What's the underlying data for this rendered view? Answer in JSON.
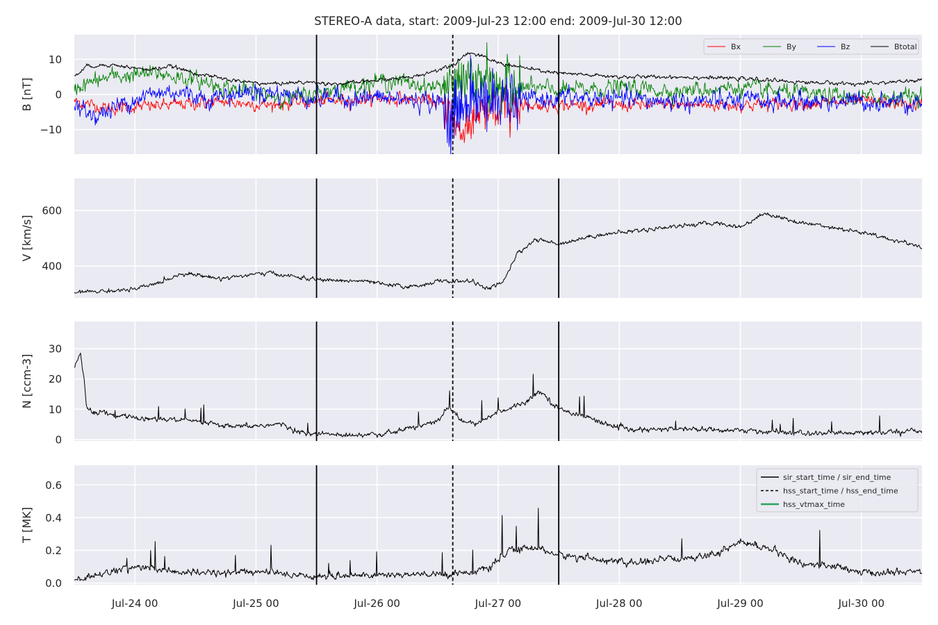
{
  "figure": {
    "title": "STEREO-A data, start: 2009-Jul-23 12:00  end: 2009-Jul-30 12:00"
  },
  "chart_data": [
    {
      "type": "line",
      "id": "B",
      "ylabel": "B [nT]",
      "ylim": [
        -17,
        17
      ],
      "yticks": [
        -10,
        0,
        10
      ],
      "legend": {
        "placement": "top-right",
        "ncol": 4,
        "entries": [
          "Bx",
          "By",
          "Bz",
          "Btotal"
        ]
      },
      "series": [
        {
          "name": "Bx",
          "color": "#ff0000",
          "baseline": -3,
          "noise": 1.6,
          "lw": 0.9,
          "keypoints": [
            [
              0,
              -2
            ],
            [
              0.3,
              -4
            ],
            [
              0.8,
              -3
            ],
            [
              1.2,
              -2
            ],
            [
              1.6,
              -3
            ],
            [
              2.0,
              -2
            ],
            [
              2.6,
              -1
            ],
            [
              3.0,
              -2
            ],
            [
              3.1,
              -5
            ],
            [
              3.2,
              -11
            ],
            [
              3.35,
              -6
            ],
            [
              3.6,
              -3
            ],
            [
              4.5,
              -3
            ],
            [
              5.5,
              -3
            ],
            [
              6.5,
              -2
            ],
            [
              7.0,
              -3
            ]
          ]
        },
        {
          "name": "By",
          "color": "#008000",
          "baseline": 2,
          "noise": 2.2,
          "lw": 0.9,
          "keypoints": [
            [
              0,
              2
            ],
            [
              0.3,
              5
            ],
            [
              0.7,
              6
            ],
            [
              1.0,
              4
            ],
            [
              1.4,
              1
            ],
            [
              1.8,
              -1
            ],
            [
              2.2,
              2
            ],
            [
              2.6,
              4
            ],
            [
              3.0,
              2
            ],
            [
              3.2,
              4
            ],
            [
              3.5,
              3
            ],
            [
              4.0,
              1
            ],
            [
              4.5,
              2
            ],
            [
              5.0,
              1
            ],
            [
              5.5,
              2
            ],
            [
              6.0,
              0
            ],
            [
              6.5,
              -1
            ],
            [
              7.0,
              0
            ]
          ]
        },
        {
          "name": "Bz",
          "color": "#0000ff",
          "baseline": -1,
          "noise": 2.6,
          "lw": 0.9,
          "keypoints": [
            [
              0,
              -4
            ],
            [
              0.2,
              -6
            ],
            [
              0.5,
              -1
            ],
            [
              0.8,
              1
            ],
            [
              1.1,
              -1
            ],
            [
              1.5,
              1
            ],
            [
              2.0,
              -1
            ],
            [
              2.5,
              -1
            ],
            [
              3.0,
              -2
            ],
            [
              3.1,
              -6
            ],
            [
              3.3,
              -1
            ],
            [
              3.6,
              -2
            ],
            [
              4.0,
              -1
            ],
            [
              5.0,
              -2
            ],
            [
              6.0,
              -2
            ],
            [
              7.0,
              -2
            ]
          ]
        },
        {
          "name": "Btotal",
          "color": "#000000",
          "baseline": 5,
          "noise": 0.5,
          "lw": 1.0,
          "keypoints": [
            [
              0,
              5
            ],
            [
              0.1,
              8
            ],
            [
              0.3,
              8.5
            ],
            [
              0.6,
              7
            ],
            [
              0.8,
              8
            ],
            [
              1.0,
              6
            ],
            [
              1.3,
              4
            ],
            [
              1.6,
              3
            ],
            [
              1.9,
              3.5
            ],
            [
              2.2,
              3
            ],
            [
              2.5,
              4
            ],
            [
              2.8,
              5
            ],
            [
              3.0,
              7
            ],
            [
              3.15,
              9
            ],
            [
              3.25,
              12
            ],
            [
              3.35,
              11
            ],
            [
              3.5,
              9
            ],
            [
              3.8,
              7
            ],
            [
              4.0,
              6
            ],
            [
              4.5,
              5
            ],
            [
              5.0,
              5
            ],
            [
              5.5,
              4.5
            ],
            [
              6.0,
              3.5
            ],
            [
              6.5,
              3
            ],
            [
              7.0,
              4
            ]
          ]
        }
      ]
    },
    {
      "type": "line",
      "id": "V",
      "ylabel": "V [km/s]",
      "ylim": [
        285,
        715
      ],
      "yticks": [
        400,
        600
      ],
      "series": [
        {
          "name": "",
          "color": "#000000",
          "baseline": 350,
          "noise": 7,
          "lw": 1.0,
          "keypoints": [
            [
              0,
              305
            ],
            [
              0.5,
              315
            ],
            [
              0.7,
              340
            ],
            [
              0.9,
              375
            ],
            [
              1.2,
              355
            ],
            [
              1.6,
              375
            ],
            [
              2.0,
              350
            ],
            [
              2.4,
              345
            ],
            [
              2.6,
              330
            ],
            [
              2.8,
              325
            ],
            [
              3.0,
              345
            ],
            [
              3.3,
              345
            ],
            [
              3.4,
              315
            ],
            [
              3.55,
              345
            ],
            [
              3.65,
              440
            ],
            [
              3.8,
              495
            ],
            [
              4.0,
              480
            ],
            [
              4.3,
              510
            ],
            [
              4.7,
              530
            ],
            [
              5.0,
              545
            ],
            [
              5.3,
              555
            ],
            [
              5.5,
              540
            ],
            [
              5.7,
              590
            ],
            [
              6.0,
              555
            ],
            [
              6.2,
              545
            ],
            [
              6.5,
              520
            ],
            [
              6.8,
              490
            ],
            [
              7.0,
              470
            ]
          ]
        }
      ]
    },
    {
      "type": "line",
      "id": "N",
      "ylabel": "N [ccm-3]",
      "ylim": [
        -0.5,
        39
      ],
      "yticks": [
        0,
        10,
        20,
        30
      ],
      "series": [
        {
          "name": "",
          "color": "#000000",
          "baseline": 3,
          "noise": 0.8,
          "lw": 1.0,
          "keypoints": [
            [
              0,
              24
            ],
            [
              0.05,
              28
            ],
            [
              0.08,
              20
            ],
            [
              0.1,
              10
            ],
            [
              0.3,
              8
            ],
            [
              0.6,
              7
            ],
            [
              1.0,
              6
            ],
            [
              1.3,
              4
            ],
            [
              1.7,
              5
            ],
            [
              1.9,
              2
            ],
            [
              2.2,
              1.5
            ],
            [
              2.6,
              2
            ],
            [
              3.0,
              6
            ],
            [
              3.1,
              11
            ],
            [
              3.2,
              6
            ],
            [
              3.3,
              5
            ],
            [
              3.5,
              9
            ],
            [
              3.7,
              12
            ],
            [
              3.85,
              16
            ],
            [
              4.0,
              10
            ],
            [
              4.2,
              8
            ],
            [
              4.4,
              5
            ],
            [
              4.6,
              3
            ],
            [
              5.0,
              3.5
            ],
            [
              5.5,
              3
            ],
            [
              6.0,
              2
            ],
            [
              6.5,
              2
            ],
            [
              7.0,
              3
            ]
          ]
        }
      ]
    },
    {
      "type": "line",
      "id": "T",
      "ylabel": "T [MK]",
      "ylim": [
        -0.01,
        0.72
      ],
      "yticks": [
        0.0,
        0.2,
        0.4,
        0.6
      ],
      "legend": {
        "placement": "top-right",
        "ncol": 1,
        "entries": [
          "sir_start_time / sir_end_time",
          "hss_start_time / hss_end_time",
          "hss_vtmax_time"
        ]
      },
      "series": [
        {
          "name": "",
          "color": "#000000",
          "baseline": 0.06,
          "noise": 0.02,
          "lw": 1.0,
          "keypoints": [
            [
              0,
              0.02
            ],
            [
              0.3,
              0.07
            ],
            [
              0.5,
              0.1
            ],
            [
              0.7,
              0.08
            ],
            [
              1.0,
              0.06
            ],
            [
              1.5,
              0.07
            ],
            [
              2.0,
              0.04
            ],
            [
              2.5,
              0.05
            ],
            [
              3.0,
              0.05
            ],
            [
              3.4,
              0.08
            ],
            [
              3.6,
              0.2
            ],
            [
              3.8,
              0.22
            ],
            [
              4.0,
              0.17
            ],
            [
              4.3,
              0.15
            ],
            [
              4.6,
              0.12
            ],
            [
              5.0,
              0.15
            ],
            [
              5.3,
              0.18
            ],
            [
              5.5,
              0.25
            ],
            [
              5.7,
              0.22
            ],
            [
              6.0,
              0.12
            ],
            [
              6.3,
              0.1
            ],
            [
              6.5,
              0.06
            ],
            [
              7.0,
              0.07
            ]
          ]
        }
      ]
    }
  ],
  "x_axis": {
    "start": "2009-07-23T12:00",
    "end": "2009-07-30T12:00",
    "ticks": [
      {
        "date": "2009-07-24T00:00",
        "label": "Jul-24 00"
      },
      {
        "date": "2009-07-25T00:00",
        "label": "Jul-25 00"
      },
      {
        "date": "2009-07-26T00:00",
        "label": "Jul-26 00"
      },
      {
        "date": "2009-07-27T00:00",
        "label": "Jul-27 00"
      },
      {
        "date": "2009-07-28T00:00",
        "label": "Jul-28 00"
      },
      {
        "date": "2009-07-29T00:00",
        "label": "Jul-29 00"
      },
      {
        "date": "2009-07-30T00:00",
        "label": "Jul-30 00"
      }
    ]
  },
  "markers": {
    "sir_start_time": "2009-07-25T12:00",
    "sir_end_time": "2009-07-27T12:00",
    "hss_start_time": "2009-07-26T15:00",
    "colors": {
      "sir": "#000000",
      "hss": "#000000",
      "hss_vtmax": "#2ca25f"
    }
  },
  "style": {
    "axes_bg": "#eaeaf2",
    "grid_color": "#ffffff"
  }
}
